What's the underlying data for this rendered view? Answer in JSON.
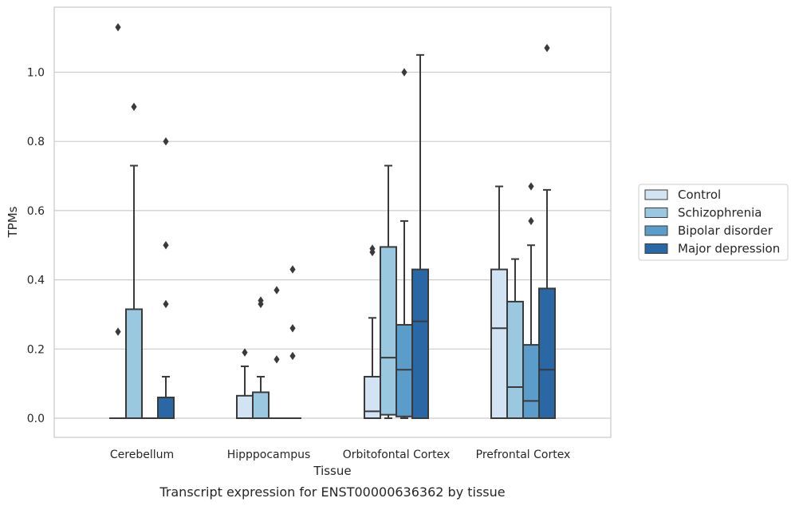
{
  "chart_data": {
    "type": "box",
    "caption": "Transcript expression for ENST00000636362 by tissue",
    "xlabel": "Tissue",
    "ylabel": "TPMs",
    "ylim": [
      -0.055,
      1.19
    ],
    "yticks": [
      "0.0",
      "0.2",
      "0.4",
      "0.6",
      "0.8",
      "1.0"
    ],
    "grid": true,
    "legend_position": "right",
    "categories": [
      "Cerebellum",
      "Hipppocampus",
      "Orbitofontal Cortex",
      "Prefrontal Cortex"
    ],
    "series": [
      {
        "name": "Control",
        "color": "#d2e3f3",
        "boxes": [
          {
            "q1": 0,
            "median": 0,
            "q3": 0,
            "whisker_low": 0,
            "whisker_high": 0,
            "outliers": [
              0.25,
              1.13
            ]
          },
          {
            "q1": 0,
            "median": 0,
            "q3": 0.065,
            "whisker_low": 0,
            "whisker_high": 0.15,
            "outliers": [
              0.19
            ]
          },
          {
            "q1": 0,
            "median": 0.02,
            "q3": 0.12,
            "whisker_low": 0,
            "whisker_high": 0.29,
            "outliers": [
              0.48,
              0.49
            ]
          },
          {
            "q1": 0,
            "median": 0.26,
            "q3": 0.43,
            "whisker_low": 0,
            "whisker_high": 0.67,
            "outliers": []
          }
        ]
      },
      {
        "name": "Schizophrenia",
        "color": "#9ac8e0",
        "boxes": [
          {
            "q1": 0,
            "median": 0,
            "q3": 0.315,
            "whisker_low": 0,
            "whisker_high": 0.73,
            "outliers": [
              0.9
            ]
          },
          {
            "q1": 0,
            "median": 0,
            "q3": 0.075,
            "whisker_low": 0,
            "whisker_high": 0.12,
            "outliers": [
              0.33,
              0.34
            ]
          },
          {
            "q1": 0.01,
            "median": 0.175,
            "q3": 0.495,
            "whisker_low": 0,
            "whisker_high": 0.73,
            "outliers": []
          },
          {
            "q1": 0,
            "median": 0.09,
            "q3": 0.337,
            "whisker_low": 0,
            "whisker_high": 0.46,
            "outliers": []
          }
        ]
      },
      {
        "name": "Bipolar disorder",
        "color": "#5a9dcb",
        "boxes": [
          {
            "q1": 0,
            "median": 0,
            "q3": 0,
            "whisker_low": 0,
            "whisker_high": 0,
            "outliers": []
          },
          {
            "q1": 0,
            "median": 0,
            "q3": 0,
            "whisker_low": 0,
            "whisker_high": 0,
            "outliers": [
              0.17,
              0.37
            ]
          },
          {
            "q1": 0.005,
            "median": 0.14,
            "q3": 0.27,
            "whisker_low": 0,
            "whisker_high": 0.57,
            "outliers": [
              1.0
            ]
          },
          {
            "q1": 0,
            "median": 0.05,
            "q3": 0.212,
            "whisker_low": 0,
            "whisker_high": 0.5,
            "outliers": [
              0.57,
              0.67
            ]
          }
        ]
      },
      {
        "name": "Major depression",
        "color": "#2a67a5",
        "boxes": [
          {
            "q1": 0,
            "median": 0,
            "q3": 0.06,
            "whisker_low": 0,
            "whisker_high": 0.12,
            "outliers": [
              0.33,
              0.5,
              0.8
            ]
          },
          {
            "q1": 0,
            "median": 0,
            "q3": 0,
            "whisker_low": 0,
            "whisker_high": 0,
            "outliers": [
              0.18,
              0.26,
              0.43
            ]
          },
          {
            "q1": 0,
            "median": 0.28,
            "q3": 0.43,
            "whisker_low": 0,
            "whisker_high": 1.05,
            "outliers": []
          },
          {
            "q1": 0,
            "median": 0.14,
            "q3": 0.375,
            "whisker_low": 0,
            "whisker_high": 0.66,
            "outliers": [
              1.07
            ]
          }
        ]
      }
    ]
  },
  "colors": {
    "grid": "#cccccc",
    "frame": "#cccccc",
    "box_edge": "#3a3a3a"
  }
}
